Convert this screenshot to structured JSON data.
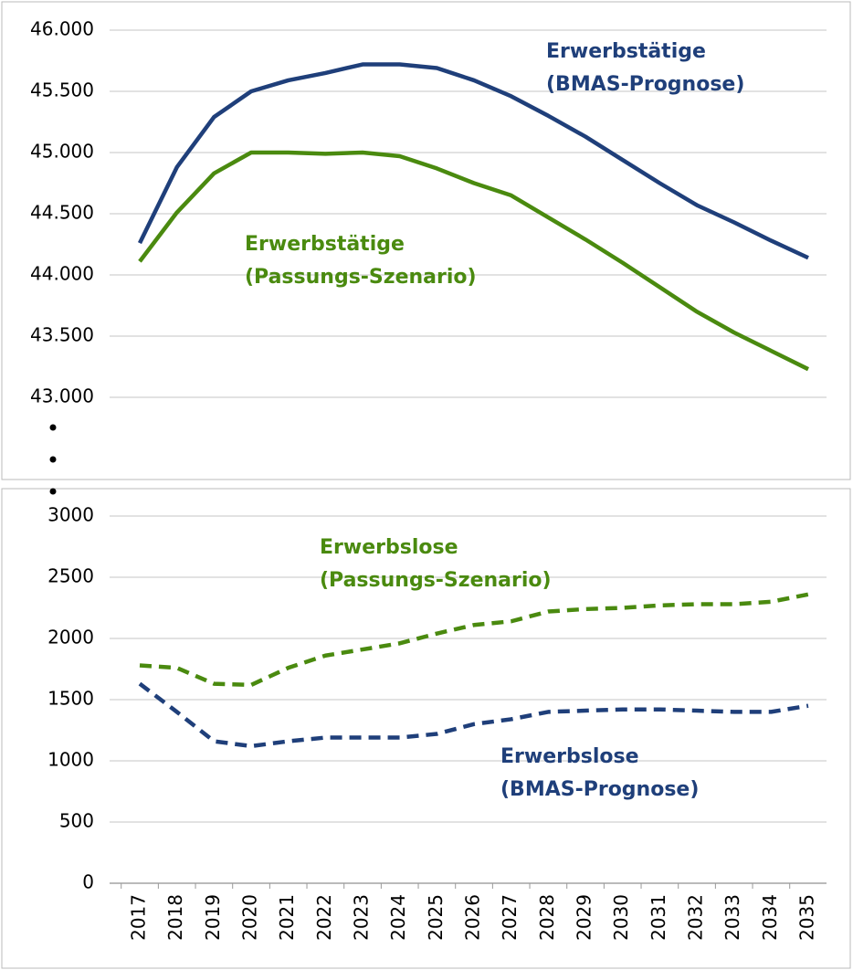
{
  "chart_data": [
    {
      "type": "line",
      "ylim": [
        43000,
        46000
      ],
      "yticks": [
        {
          "value": 43000,
          "label": "43.000"
        },
        {
          "value": 43500,
          "label": "43.500"
        },
        {
          "value": 44000,
          "label": "44.000"
        },
        {
          "value": 44500,
          "label": "44.500"
        },
        {
          "value": 45000,
          "label": "45.000"
        },
        {
          "value": 45500,
          "label": "45.500"
        },
        {
          "value": 46000,
          "label": "46.000"
        }
      ],
      "grid": true,
      "series": [
        {
          "label": [
            "Erwerbstätige",
            "(BMAS-Prognose)"
          ],
          "color": "#1f3f7a",
          "line_style": "solid",
          "values": [
            44260,
            44880,
            45290,
            45500,
            45590,
            45650,
            45720,
            45720,
            45690,
            45590,
            45460,
            45300,
            45130,
            44940,
            44750,
            44570,
            44430,
            44280,
            44140
          ]
        },
        {
          "label": [
            "Erwerbstätige",
            "(Passungs-Szenario)"
          ],
          "color": "#4a8a0f",
          "line_style": "solid",
          "values": [
            44110,
            44510,
            44830,
            45000,
            45000,
            44990,
            45000,
            44970,
            44870,
            44750,
            44650,
            44470,
            44290,
            44100,
            43900,
            43700,
            43530,
            43380,
            43230
          ]
        }
      ]
    },
    {
      "type": "line",
      "categories": [
        "2017",
        "2018",
        "2019",
        "2020",
        "2021",
        "2022",
        "2023",
        "2024",
        "2025",
        "2026",
        "2027",
        "2028",
        "2029",
        "2030",
        "2031",
        "2032",
        "2033",
        "2034",
        "2035"
      ],
      "ylim": [
        0,
        3000
      ],
      "yticks": [
        0,
        500,
        1000,
        1500,
        2000,
        2500,
        3000
      ],
      "grid": true,
      "series": [
        {
          "label": [
            "Erwerbslose",
            "(Passungs-Szenario)"
          ],
          "color": "#4a8a0f",
          "line_style": "dashed",
          "values": [
            1780,
            1760,
            1630,
            1620,
            1760,
            1860,
            1910,
            1960,
            2040,
            2110,
            2140,
            2220,
            2240,
            2250,
            2270,
            2280,
            2280,
            2300,
            2360
          ]
        },
        {
          "label": [
            "Erwerbslose",
            "(BMAS-Prognose)"
          ],
          "color": "#1f3f7a",
          "line_style": "dashed",
          "values": [
            1630,
            1400,
            1160,
            1120,
            1160,
            1190,
            1190,
            1190,
            1220,
            1300,
            1340,
            1400,
            1410,
            1420,
            1420,
            1410,
            1400,
            1400,
            1450
          ]
        }
      ]
    }
  ]
}
